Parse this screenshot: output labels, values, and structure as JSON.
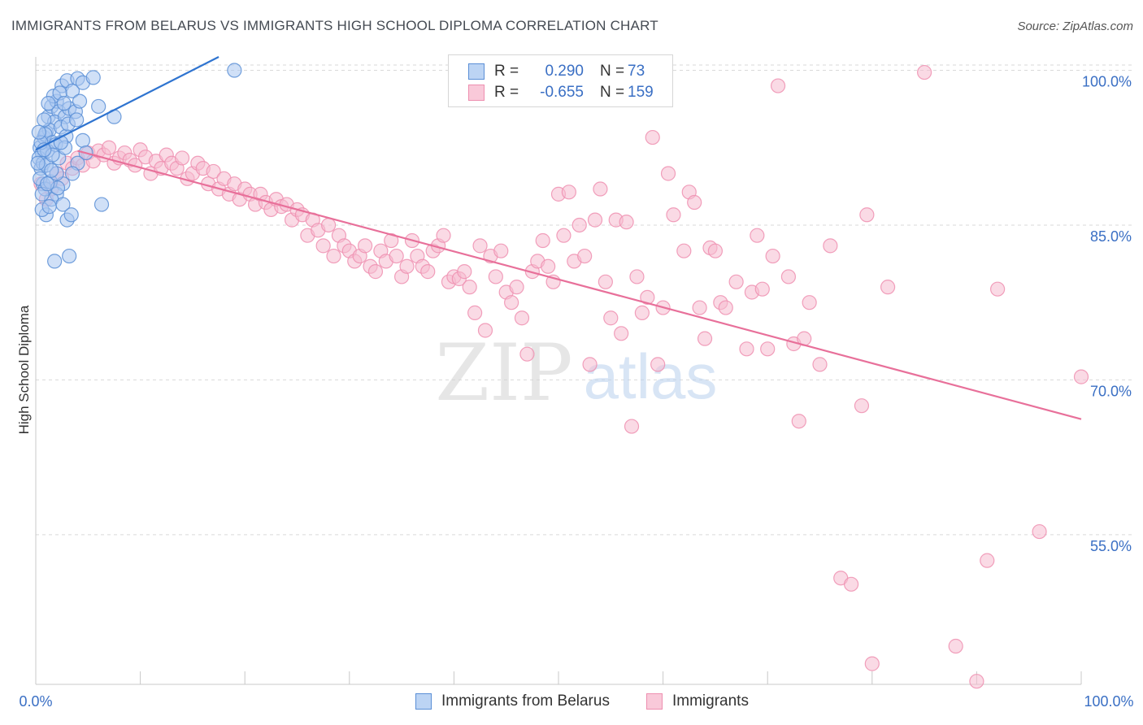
{
  "title": "IMMIGRANTS FROM BELARUS VS IMMIGRANTS HIGH SCHOOL DIPLOMA CORRELATION CHART",
  "source": "Source: ZipAtlas.com",
  "watermark": {
    "zip": "ZIP",
    "atlas": "atlas"
  },
  "legend": {
    "rows": [
      {
        "r_label": "R =",
        "r_value": "0.290",
        "n_label": "N =",
        "n_value": "73"
      },
      {
        "r_label": "R =",
        "r_value": "-0.655",
        "n_label": "N =",
        "n_value": "159"
      }
    ]
  },
  "colors": {
    "blue_fill": "#a9c7f0",
    "blue_stroke": "#5b8fd6",
    "blue_line": "#2f74d0",
    "pink_fill": "#f6bcd0",
    "pink_stroke": "#ee8fb0",
    "pink_line": "#e8709a",
    "tick_label": "#3a6fc4",
    "grid": "#d9d9d9"
  },
  "chart_data": {
    "type": "scatter",
    "title": "IMMIGRANTS FROM BELARUS VS IMMIGRANTS HIGH SCHOOL DIPLOMA CORRELATION CHART",
    "xlabel": "",
    "ylabel": "High School Diploma",
    "xlim": [
      0,
      100
    ],
    "ylim": [
      40.5,
      101.3
    ],
    "x_tick_labels": [
      "0.0%",
      "100.0%"
    ],
    "y_ticks": [
      100,
      85,
      70,
      55
    ],
    "y_tick_labels": [
      "100.0%",
      "85.0%",
      "70.0%",
      "55.0%"
    ],
    "grid": true,
    "series": [
      {
        "name": "Immigrants from Belarus",
        "color": "blue",
        "trend": {
          "x": [
            0,
            17.5
          ],
          "y": [
            92.3,
            101.3
          ]
        },
        "points": [
          [
            0.4,
            92.5
          ],
          [
            0.6,
            92.0
          ],
          [
            0.3,
            91.5
          ],
          [
            0.8,
            93.5
          ],
          [
            1.0,
            94.0
          ],
          [
            0.5,
            90.5
          ],
          [
            0.7,
            89.0
          ],
          [
            1.2,
            95.5
          ],
          [
            1.5,
            96.5
          ],
          [
            2.0,
            97.0
          ],
          [
            2.5,
            98.5
          ],
          [
            3.0,
            99.0
          ],
          [
            3.5,
            98.0
          ],
          [
            4.0,
            99.2
          ],
          [
            4.5,
            98.8
          ],
          [
            5.5,
            99.3
          ],
          [
            2.2,
            96.0
          ],
          [
            1.8,
            95.0
          ],
          [
            2.8,
            95.5
          ],
          [
            3.2,
            96.3
          ],
          [
            1.3,
            94.2
          ],
          [
            0.9,
            93.8
          ],
          [
            1.6,
            93.0
          ],
          [
            2.4,
            94.5
          ],
          [
            3.8,
            96.0
          ],
          [
            4.5,
            93.2
          ],
          [
            4.8,
            92.0
          ],
          [
            4.0,
            91.0
          ],
          [
            3.5,
            90.0
          ],
          [
            2.6,
            89.0
          ],
          [
            2.0,
            88.0
          ],
          [
            1.5,
            87.5
          ],
          [
            1.0,
            86.0
          ],
          [
            0.6,
            86.5
          ],
          [
            3.0,
            85.5
          ],
          [
            6.0,
            96.5
          ],
          [
            7.5,
            95.5
          ],
          [
            6.3,
            87.0
          ],
          [
            3.2,
            82.0
          ],
          [
            1.8,
            81.5
          ],
          [
            19.0,
            100.0
          ],
          [
            2.2,
            91.5
          ],
          [
            0.7,
            91.0
          ],
          [
            1.1,
            92.2
          ],
          [
            1.9,
            92.8
          ],
          [
            2.9,
            93.6
          ],
          [
            0.4,
            89.5
          ],
          [
            0.9,
            88.5
          ],
          [
            1.4,
            89.2
          ],
          [
            2.0,
            90.0
          ],
          [
            2.6,
            87.0
          ],
          [
            3.4,
            86.0
          ],
          [
            1.7,
            97.5
          ],
          [
            2.3,
            97.8
          ],
          [
            1.2,
            96.8
          ],
          [
            0.8,
            95.2
          ],
          [
            3.1,
            94.8
          ],
          [
            1.0,
            90.8
          ],
          [
            0.5,
            93.0
          ],
          [
            1.6,
            91.8
          ],
          [
            2.8,
            92.5
          ],
          [
            0.3,
            94.0
          ],
          [
            0.6,
            88.0
          ],
          [
            1.3,
            86.8
          ],
          [
            2.1,
            88.6
          ],
          [
            3.9,
            95.2
          ],
          [
            4.2,
            97.0
          ],
          [
            0.8,
            92.3
          ],
          [
            1.5,
            90.3
          ],
          [
            2.4,
            93.0
          ],
          [
            0.2,
            91.0
          ],
          [
            1.1,
            89.0
          ],
          [
            2.7,
            96.8
          ]
        ]
      },
      {
        "name": "Immigrants",
        "color": "pink",
        "trend": {
          "x": [
            4,
            100
          ],
          "y": [
            92.2,
            66.2
          ]
        },
        "points": [
          [
            0.5,
            89.0
          ],
          [
            1.0,
            87.5
          ],
          [
            1.5,
            88.5
          ],
          [
            2.0,
            90.0
          ],
          [
            2.5,
            89.5
          ],
          [
            3.0,
            91.0
          ],
          [
            3.5,
            90.5
          ],
          [
            4.0,
            91.5
          ],
          [
            4.5,
            90.8
          ],
          [
            5.0,
            92.0
          ],
          [
            5.5,
            91.2
          ],
          [
            6.0,
            92.2
          ],
          [
            6.5,
            91.8
          ],
          [
            7.0,
            92.5
          ],
          [
            7.5,
            91.0
          ],
          [
            8.0,
            91.5
          ],
          [
            8.5,
            92.0
          ],
          [
            9.0,
            91.3
          ],
          [
            9.5,
            90.8
          ],
          [
            10.0,
            92.3
          ],
          [
            10.5,
            91.6
          ],
          [
            11.0,
            90.0
          ],
          [
            11.5,
            91.2
          ],
          [
            12.0,
            90.5
          ],
          [
            12.5,
            91.8
          ],
          [
            13.0,
            91.0
          ],
          [
            13.5,
            90.5
          ],
          [
            14.0,
            91.5
          ],
          [
            14.5,
            89.5
          ],
          [
            15.0,
            90.0
          ],
          [
            15.5,
            91.0
          ],
          [
            16.0,
            90.5
          ],
          [
            16.5,
            89.0
          ],
          [
            17.0,
            90.2
          ],
          [
            17.5,
            88.5
          ],
          [
            18.0,
            89.5
          ],
          [
            18.5,
            88.0
          ],
          [
            19.0,
            89.0
          ],
          [
            19.5,
            87.5
          ],
          [
            20.0,
            88.5
          ],
          [
            20.5,
            88.0
          ],
          [
            21.0,
            87.0
          ],
          [
            21.5,
            88.0
          ],
          [
            22.0,
            87.2
          ],
          [
            22.5,
            86.5
          ],
          [
            23.0,
            87.5
          ],
          [
            23.5,
            86.8
          ],
          [
            24.0,
            87.0
          ],
          [
            24.5,
            85.5
          ],
          [
            25.0,
            86.5
          ],
          [
            25.5,
            86.0
          ],
          [
            26.0,
            84.0
          ],
          [
            26.5,
            85.5
          ],
          [
            27.0,
            84.5
          ],
          [
            27.5,
            83.0
          ],
          [
            28.0,
            85.0
          ],
          [
            28.5,
            82.0
          ],
          [
            29.0,
            84.0
          ],
          [
            29.5,
            83.0
          ],
          [
            30.0,
            82.5
          ],
          [
            30.5,
            81.5
          ],
          [
            31.0,
            82.0
          ],
          [
            31.5,
            83.0
          ],
          [
            32.0,
            81.0
          ],
          [
            32.5,
            80.5
          ],
          [
            33.0,
            82.5
          ],
          [
            33.5,
            81.5
          ],
          [
            34.0,
            83.5
          ],
          [
            34.5,
            82.0
          ],
          [
            35.0,
            80.0
          ],
          [
            35.5,
            81.0
          ],
          [
            36.0,
            83.5
          ],
          [
            36.5,
            82.0
          ],
          [
            37.0,
            81.0
          ],
          [
            37.5,
            80.5
          ],
          [
            38.0,
            82.5
          ],
          [
            38.5,
            83.0
          ],
          [
            39.0,
            84.0
          ],
          [
            39.5,
            79.5
          ],
          [
            40.0,
            80.0
          ],
          [
            40.5,
            79.8
          ],
          [
            41.0,
            80.5
          ],
          [
            41.5,
            79.0
          ],
          [
            42.0,
            76.5
          ],
          [
            42.5,
            83.0
          ],
          [
            43.0,
            74.8
          ],
          [
            43.5,
            82.0
          ],
          [
            44.0,
            80.0
          ],
          [
            44.5,
            82.5
          ],
          [
            45.0,
            78.5
          ],
          [
            45.5,
            77.5
          ],
          [
            46.0,
            79.0
          ],
          [
            46.5,
            76.0
          ],
          [
            47.0,
            72.5
          ],
          [
            47.5,
            80.5
          ],
          [
            48.0,
            81.5
          ],
          [
            48.5,
            83.5
          ],
          [
            49.0,
            81.0
          ],
          [
            49.5,
            79.5
          ],
          [
            50.0,
            88.0
          ],
          [
            50.5,
            84.0
          ],
          [
            51.0,
            88.2
          ],
          [
            51.5,
            81.5
          ],
          [
            52.0,
            85.0
          ],
          [
            52.5,
            82.0
          ],
          [
            53.0,
            71.5
          ],
          [
            53.5,
            85.5
          ],
          [
            54.0,
            88.5
          ],
          [
            54.5,
            79.5
          ],
          [
            55.0,
            76.0
          ],
          [
            55.5,
            85.5
          ],
          [
            56.0,
            74.5
          ],
          [
            56.5,
            85.3
          ],
          [
            57.0,
            65.5
          ],
          [
            57.5,
            80.0
          ],
          [
            58.0,
            76.5
          ],
          [
            58.5,
            78.0
          ],
          [
            59.0,
            93.5
          ],
          [
            59.5,
            71.5
          ],
          [
            60.0,
            77.0
          ],
          [
            60.5,
            90.0
          ],
          [
            61.0,
            86.0
          ],
          [
            62.0,
            82.5
          ],
          [
            62.5,
            88.2
          ],
          [
            63.0,
            87.2
          ],
          [
            63.5,
            77.0
          ],
          [
            64.0,
            74.0
          ],
          [
            64.5,
            82.8
          ],
          [
            65.0,
            82.5
          ],
          [
            65.5,
            77.5
          ],
          [
            66.0,
            77.0
          ],
          [
            67.0,
            79.5
          ],
          [
            68.0,
            73.0
          ],
          [
            68.5,
            78.5
          ],
          [
            69.0,
            84.0
          ],
          [
            69.5,
            78.8
          ],
          [
            70.0,
            73.0
          ],
          [
            70.5,
            82.0
          ],
          [
            71.0,
            98.5
          ],
          [
            72.0,
            80.0
          ],
          [
            72.5,
            73.5
          ],
          [
            73.0,
            66.0
          ],
          [
            73.5,
            74.0
          ],
          [
            74.0,
            77.5
          ],
          [
            75.0,
            71.5
          ],
          [
            76.0,
            83.0
          ],
          [
            77.0,
            50.8
          ],
          [
            78.0,
            50.2
          ],
          [
            79.0,
            67.5
          ],
          [
            79.5,
            86.0
          ],
          [
            80.0,
            42.5
          ],
          [
            81.5,
            79.0
          ],
          [
            85.0,
            99.8
          ],
          [
            88.0,
            44.2
          ],
          [
            90.0,
            40.8
          ],
          [
            91.0,
            52.5
          ],
          [
            92.0,
            78.8
          ],
          [
            96.0,
            55.3
          ],
          [
            100.0,
            70.3
          ]
        ]
      }
    ],
    "legend_labels": [
      "Immigrants from Belarus",
      "Immigrants"
    ],
    "legend_position": "top-center"
  },
  "ui": {
    "bottom_legend": [
      {
        "label": "Immigrants from Belarus"
      },
      {
        "label": "Immigrants"
      }
    ]
  }
}
